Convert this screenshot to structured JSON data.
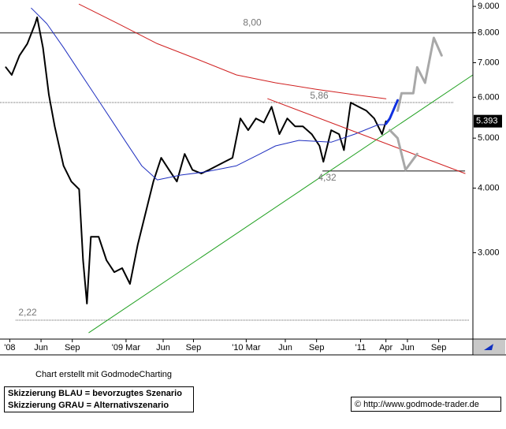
{
  "chart_data": {
    "type": "line",
    "log_scale": true,
    "xlim": [
      -0.2,
      48.2
    ],
    "ylim": [
      2.04,
      9.26
    ],
    "xticks": [
      {
        "value": 0.8,
        "label": "'08"
      },
      {
        "value": 4.0,
        "label": "Jun"
      },
      {
        "value": 7.2,
        "label": "Sep"
      },
      {
        "value": 12.7,
        "label": "'09 Mar"
      },
      {
        "value": 16.5,
        "label": "Jun"
      },
      {
        "value": 19.6,
        "label": "Sep"
      },
      {
        "value": 25.0,
        "label": "'10 Mar"
      },
      {
        "value": 29.0,
        "label": "Jun"
      },
      {
        "value": 32.2,
        "label": "Sep"
      },
      {
        "value": 36.7,
        "label": "'11"
      },
      {
        "value": 39.3,
        "label": "Apr"
      },
      {
        "value": 41.5,
        "label": "Jun"
      },
      {
        "value": 44.7,
        "label": "Sep"
      }
    ],
    "yticks": [
      {
        "value": 3,
        "label": "3.000"
      },
      {
        "value": 4,
        "label": "4.000"
      },
      {
        "value": 5,
        "label": "5.000"
      },
      {
        "value": 6,
        "label": "6.000"
      },
      {
        "value": 7,
        "label": "7.000"
      },
      {
        "value": 8,
        "label": "8.000"
      },
      {
        "value": 9,
        "label": "9.000"
      }
    ],
    "series": [
      {
        "color": "#000000",
        "width": 2,
        "x": [
          0.4,
          1.0,
          1.8,
          2.6,
          3.4,
          3.6,
          4.2,
          4.8,
          5.4,
          6.3,
          7.1,
          7.9,
          8.3,
          8.7,
          9.1,
          9.9,
          10.7,
          11.5,
          12.3,
          13.1,
          13.9,
          14.7,
          15.5,
          16.3,
          17.1,
          17.9,
          18.7,
          19.5,
          20.4,
          21.2,
          22.0,
          22.8,
          23.6,
          24.4,
          25.2,
          26.0,
          26.8,
          27.6,
          28.4,
          29.2,
          30.0,
          30.8,
          31.7,
          32.5,
          32.9,
          33.7,
          34.5,
          35.0,
          35.7,
          36.5,
          37.3,
          38.1,
          38.9,
          39.3
        ],
        "values": [
          6.86,
          6.63,
          7.23,
          7.62,
          8.33,
          8.57,
          7.49,
          6.07,
          5.27,
          4.42,
          4.12,
          3.98,
          2.9,
          2.39,
          3.22,
          3.22,
          2.9,
          2.75,
          2.8,
          2.61,
          3.11,
          3.58,
          4.12,
          4.58,
          4.34,
          4.12,
          4.66,
          4.34,
          4.27,
          4.34,
          4.42,
          4.5,
          4.58,
          5.46,
          5.18,
          5.46,
          5.36,
          5.75,
          5.09,
          5.46,
          5.27,
          5.27,
          5.09,
          4.83,
          4.5,
          5.18,
          5.09,
          4.74,
          5.86,
          5.75,
          5.65,
          5.46,
          5.09,
          5.39
        ]
      },
      {
        "color": "#2030c0",
        "width": 1,
        "x": [
          3.0,
          4.6,
          6.3,
          7.9,
          9.5,
          11.1,
          12.7,
          14.3,
          15.9,
          18.3,
          20.8,
          24.0,
          26.4,
          28.0,
          30.4,
          33.7,
          36.1,
          38.5,
          39.3
        ],
        "values": [
          8.93,
          8.33,
          7.49,
          6.74,
          6.07,
          5.46,
          4.91,
          4.42,
          4.15,
          4.24,
          4.3,
          4.42,
          4.66,
          4.83,
          4.95,
          4.91,
          5.09,
          5.31,
          5.31
        ]
      },
      {
        "color": "#d02020",
        "width": 1,
        "x": [
          7.9,
          11.9,
          15.9,
          20.0,
          24.0,
          28.0,
          32.1,
          36.1,
          39.3
        ],
        "values": [
          9.09,
          8.33,
          7.62,
          7.11,
          6.63,
          6.4,
          6.22,
          6.07,
          5.96
        ]
      },
      {
        "color": "#20a020",
        "width": 1,
        "x": [
          8.9,
          48.2
        ],
        "values": [
          2.1,
          6.63
        ]
      },
      {
        "color": "#d02020",
        "width": 1,
        "x": [
          27.2,
          47.4
        ],
        "values": [
          5.96,
          4.27
        ]
      },
      {
        "color": "#1030e0",
        "width": 3,
        "x": [
          39.3,
          39.7,
          40.5
        ],
        "values": [
          5.33,
          5.46,
          5.92
        ]
      },
      {
        "color": "#a8a8a8",
        "width": 3,
        "x": [
          40.5,
          40.9,
          42.1,
          42.5,
          43.3,
          44.2,
          45.0
        ],
        "values": [
          5.65,
          6.11,
          6.11,
          6.86,
          6.4,
          7.82,
          7.23
        ]
      },
      {
        "color": "#a8a8a8",
        "width": 3,
        "x": [
          39.7,
          40.5,
          41.3,
          42.5
        ],
        "values": [
          5.18,
          5.0,
          4.34,
          4.66
        ]
      }
    ],
    "levels": [
      {
        "value": 8.0,
        "label": "8,00",
        "span": [
          -0.2,
          48.2
        ],
        "dash": false,
        "color": "#606060"
      },
      {
        "value": 5.86,
        "label": "5,86",
        "span": [
          -0.2,
          46.2
        ],
        "dash": true,
        "color": "#606060"
      },
      {
        "value": 4.32,
        "label": "4,32",
        "span": [
          32.8,
          47.4
        ],
        "dash": false,
        "color": "#606060"
      },
      {
        "value": 2.22,
        "label": "2,22",
        "span": [
          1.4,
          47.8
        ],
        "dash": true,
        "color": "#606060"
      }
    ],
    "last": {
      "value": 5.393,
      "label": "5.393"
    }
  },
  "footer": {
    "credit": "Chart erstellt mit GodmodeCharting",
    "legend_blue": "Skizzierung BLAU = bevorzugtes Szenario",
    "legend_gray": "Skizzierung GRAU = Alternativszenario",
    "source": "© http://www.godmode-trader.de"
  }
}
